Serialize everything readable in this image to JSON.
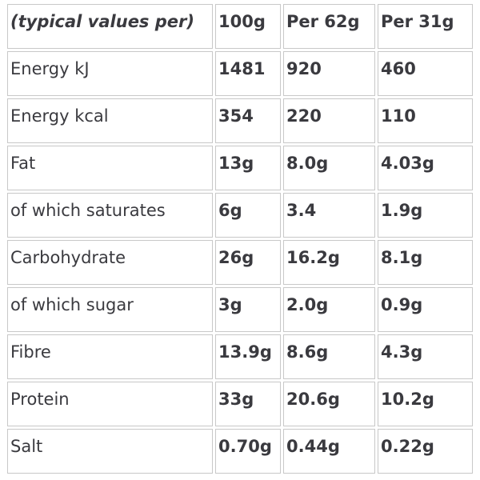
{
  "table": {
    "header": [
      "(typical values per)",
      "100g",
      "Per 62g",
      "Per 31g"
    ],
    "rows": [
      [
        "Energy kJ",
        "1481",
        "920",
        "460"
      ],
      [
        "Energy kcal",
        "354",
        "220",
        "110"
      ],
      [
        "Fat",
        "13g",
        "8.0g",
        "4.03g"
      ],
      [
        "of which saturates",
        "6g",
        "3.4",
        "1.9g"
      ],
      [
        "Carbohydrate",
        "26g",
        "16.2g",
        "8.1g"
      ],
      [
        "of which sugar",
        "3g",
        "2.0g",
        "0.9g"
      ],
      [
        "Fibre",
        "13.9g",
        "8.6g",
        "4.3g"
      ],
      [
        "Protein",
        "33g",
        "20.6g",
        "10.2g"
      ],
      [
        "Salt",
        "0.70g",
        "0.44g",
        "0.22g"
      ]
    ]
  }
}
